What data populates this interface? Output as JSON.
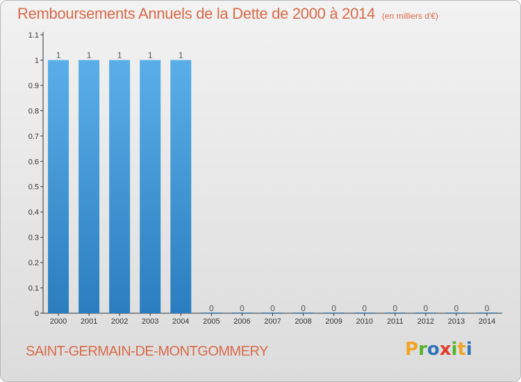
{
  "title": "Remboursements Annuels de la Dette de 2000 à 2014",
  "title_unit": "(en milliers d'€)",
  "commune": "SAINT-GERMAIN-DE-MONTGOMMERY",
  "brand": {
    "letters": [
      "P",
      "r",
      "o",
      "x",
      "i",
      "t",
      "i"
    ],
    "colors": [
      "#f0a526",
      "#55b42e",
      "#2f74b9",
      "#e33b2b",
      "#55b42e",
      "#f0a526",
      "#2f74b9"
    ]
  },
  "colors": {
    "title": "#d96a49",
    "bar_top": "#5aaee8",
    "bar_bottom": "#2a7ebf",
    "axis": "#333333",
    "tick_label": "#333333",
    "value_label": "#555555"
  },
  "chart_data": {
    "type": "bar",
    "categories": [
      "2000",
      "2001",
      "2002",
      "2003",
      "2004",
      "2005",
      "2006",
      "2007",
      "2008",
      "2009",
      "2010",
      "2011",
      "2012",
      "2013",
      "2014"
    ],
    "values": [
      1,
      1,
      1,
      1,
      1,
      0,
      0,
      0,
      0,
      0,
      0,
      0,
      0,
      0,
      0
    ],
    "value_labels": [
      "1",
      "1",
      "1",
      "1",
      "1",
      "0",
      "0",
      "0",
      "0",
      "0",
      "0",
      "0",
      "0",
      "0",
      "0"
    ],
    "yticks": [
      0,
      0.1,
      0.2,
      0.3,
      0.4,
      0.5,
      0.6,
      0.7,
      0.8,
      0.9,
      1,
      1.1
    ],
    "ytick_labels": [
      "0",
      "0.1",
      "0.2",
      "0.3",
      "0.4",
      "0.5",
      "0.6",
      "0.7",
      "0.8",
      "0.9",
      "1",
      "1.1"
    ],
    "ylim": [
      0,
      1.1
    ],
    "grid": false
  }
}
